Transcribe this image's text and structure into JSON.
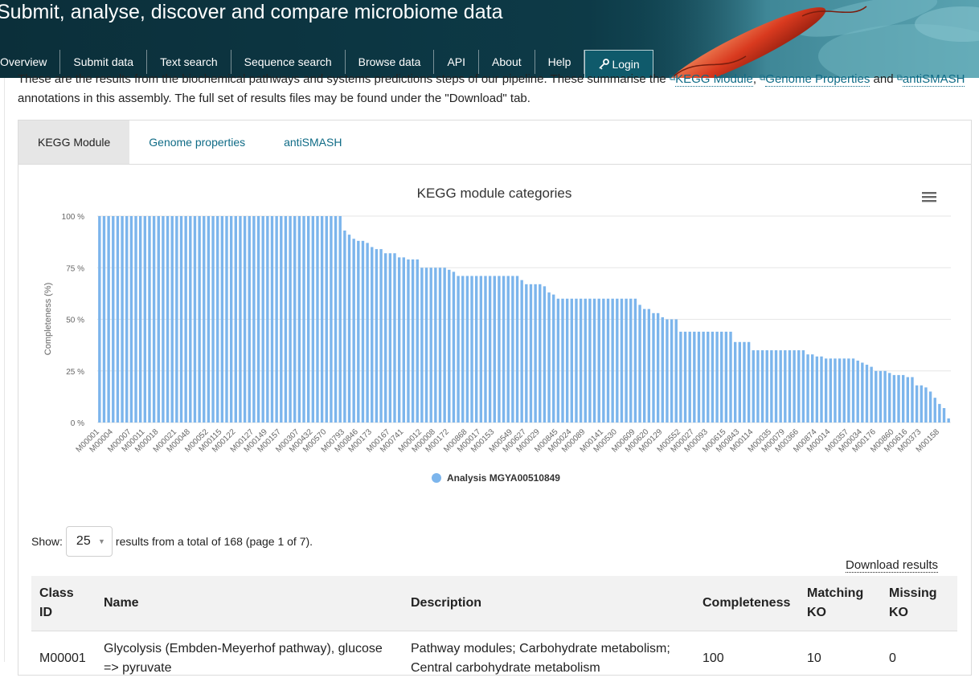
{
  "header": {
    "title": "Submit, analyse, discover and compare microbiome data",
    "nav": [
      "Overview",
      "Submit data",
      "Text search",
      "Sequence search",
      "Browse data",
      "API",
      "About",
      "Help"
    ],
    "login_label": "Login"
  },
  "intro": {
    "part1": "These are the results from the biochemical pathways and systems predictions steps of our pipeline. These summarise the",
    "link_kegg": "KEGG Module",
    "sep": ",",
    "link_gp": "Genome Properties",
    "and": "and",
    "link_antismash": "antiSMASH",
    "part2": "annotations in this assembly. The full set of results files may be found under the \"Download\" tab."
  },
  "tabs": [
    "KEGG Module",
    "Genome properties",
    "antiSMASH"
  ],
  "chart_data": {
    "type": "bar",
    "title": "KEGG module categories",
    "ylabel": "Completeness (%)",
    "xlabel": "",
    "ylim": [
      0,
      100
    ],
    "yticks": [
      "0 %",
      "25 %",
      "50 %",
      "75 %",
      "100 %"
    ],
    "legend": "bottom-center",
    "grid": true,
    "x_tick_labels": [
      "M00001",
      "M00004",
      "M00007",
      "M00011",
      "M00018",
      "M00021",
      "M00048",
      "M00052",
      "M00115",
      "M00122",
      "M00127",
      "M00149",
      "M00157",
      "M00307",
      "M00432",
      "M00570",
      "M00793",
      "M00846",
      "M00173",
      "M00167",
      "M00741",
      "M00012",
      "M00008",
      "M00172",
      "M00868",
      "M00017",
      "M00153",
      "M00549",
      "M00627",
      "M00029",
      "M00845",
      "M00024",
      "M00089",
      "M00141",
      "M00530",
      "M00609",
      "M00620",
      "M00129",
      "M00552",
      "M00027",
      "M00093",
      "M00615",
      "M00843",
      "M00114",
      "M00035",
      "M00079",
      "M00366",
      "M00874",
      "M00014",
      "M00357",
      "M00034",
      "M00176",
      "M00860",
      "M00616",
      "M00373",
      "M00158"
    ],
    "series": [
      {
        "name": "Analysis MGYA00510849",
        "color": "#7cb5ec",
        "values": [
          100,
          100,
          100,
          100,
          100,
          100,
          100,
          100,
          100,
          100,
          100,
          100,
          100,
          100,
          100,
          100,
          100,
          100,
          100,
          100,
          100,
          100,
          100,
          100,
          100,
          100,
          100,
          100,
          100,
          100,
          100,
          100,
          100,
          100,
          100,
          100,
          100,
          100,
          100,
          100,
          100,
          100,
          100,
          100,
          100,
          100,
          100,
          100,
          100,
          100,
          100,
          100,
          100,
          100,
          93,
          91,
          89,
          88,
          88,
          87,
          85,
          84,
          84,
          82,
          82,
          82,
          80,
          80,
          79,
          79,
          79,
          75,
          75,
          75,
          75,
          75,
          75,
          74,
          73,
          71,
          71,
          71,
          71,
          71,
          71,
          71,
          71,
          71,
          71,
          71,
          71,
          71,
          71,
          69,
          67,
          67,
          67,
          67,
          66,
          63,
          62,
          60,
          60,
          60,
          60,
          60,
          60,
          60,
          60,
          60,
          60,
          60,
          60,
          60,
          60,
          60,
          60,
          60,
          60,
          57,
          55,
          55,
          53,
          53,
          51,
          50,
          50,
          50,
          44,
          44,
          44,
          44,
          44,
          44,
          44,
          44,
          44,
          44,
          44,
          44,
          39,
          39,
          39,
          39,
          35,
          35,
          35,
          35,
          35,
          35,
          35,
          35,
          35,
          35,
          35,
          35,
          33,
          33,
          32,
          32,
          31,
          31,
          31,
          31,
          31,
          31,
          31,
          30,
          29,
          28,
          27,
          25,
          25,
          25,
          24,
          23,
          23,
          23,
          22,
          22,
          18,
          18,
          17,
          15,
          12,
          9,
          7,
          2
        ]
      }
    ]
  },
  "controls": {
    "show_label": "Show:",
    "page_size": "25",
    "results_text": "results from a total of 168 (page 1 of 7).",
    "download_label": "Download results"
  },
  "table": {
    "headers": [
      "Class ID",
      "Name",
      "Description",
      "Completeness",
      "Matching KO",
      "Missing KO"
    ],
    "rows": [
      {
        "class_id": "M00001",
        "name": "Glycolysis (Embden-Meyerhof pathway), glucose => pyruvate",
        "description": "Pathway modules; Carbohydrate metabolism; Central carbohydrate metabolism",
        "completeness": "100",
        "matching_ko": "10",
        "missing_ko": "0"
      }
    ]
  }
}
